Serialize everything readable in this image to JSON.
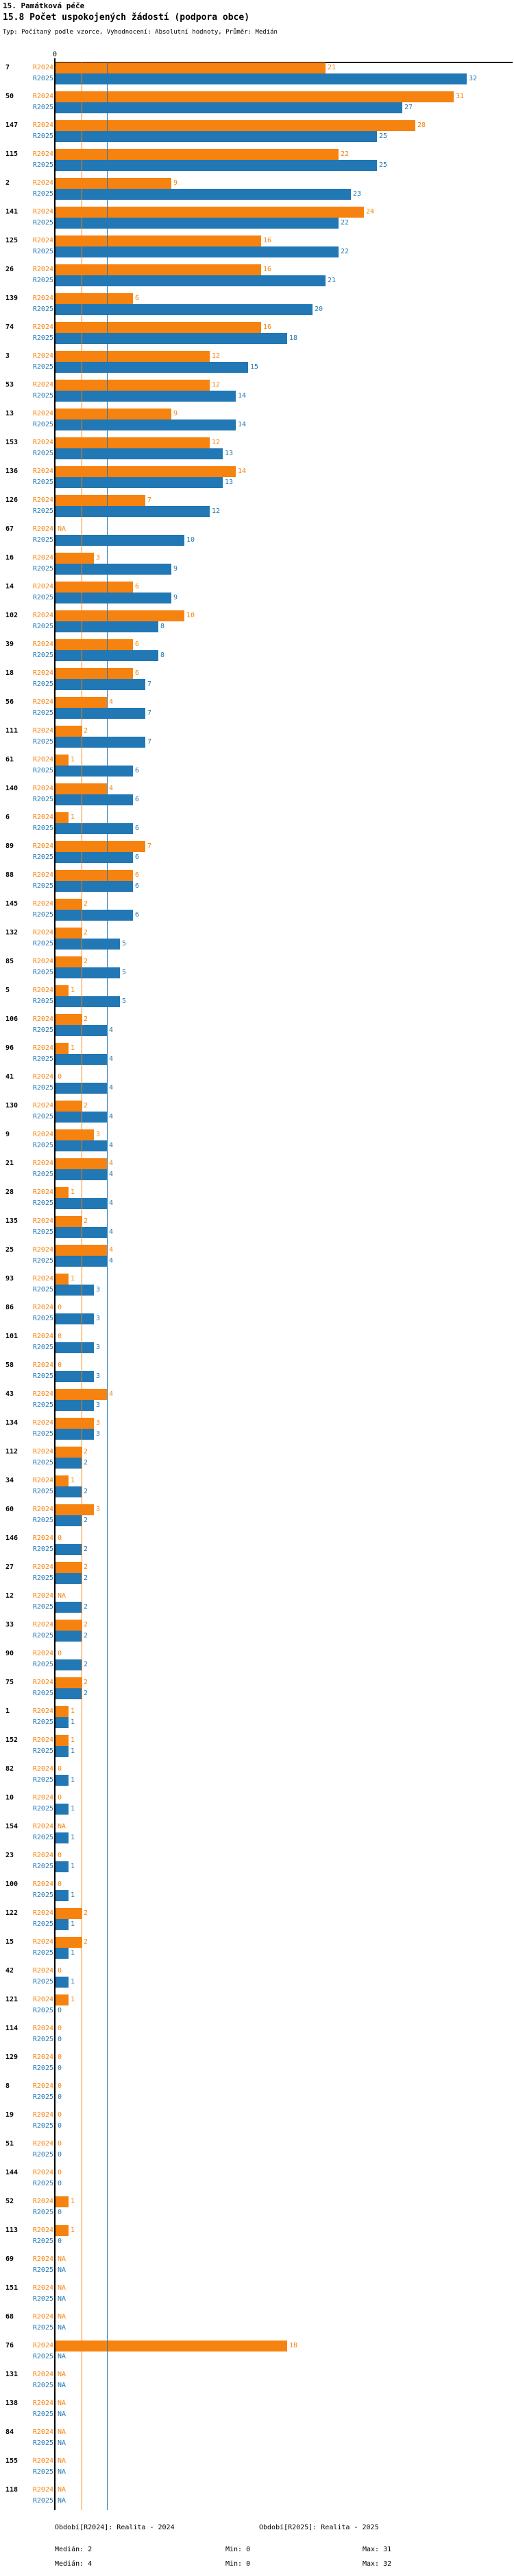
{
  "header": {
    "title": "15. Památková péče",
    "subtitle": "15.8 Počet uspokojených žádostí (podpora obce)",
    "meta": "Typ: Počítaný podle vzorce, Vyhodnocení: Absolutní hodnoty, Průměr: Medián"
  },
  "colors": {
    "r2024": "#F6830F",
    "r2025": "#2277B5",
    "axis": "#000000"
  },
  "axis": {
    "zero_label": "0"
  },
  "chart_data": {
    "type": "bar",
    "orientation": "horizontal",
    "xlim": [
      0,
      32
    ],
    "grid": true,
    "series_labels": [
      "R2024",
      "R2025"
    ],
    "na_label": "NA",
    "gridlines": [
      {
        "name": "median-r2024",
        "value": 2,
        "color": "#F6830F"
      },
      {
        "name": "median-r2025",
        "value": 4,
        "color": "#2277B5"
      }
    ],
    "rows": [
      {
        "label": "7",
        "r2024": 21,
        "r2025": 32
      },
      {
        "label": "50",
        "r2024": 31,
        "r2025": 27
      },
      {
        "label": "147",
        "r2024": 28,
        "r2025": 25
      },
      {
        "label": "115",
        "r2024": 22,
        "r2025": 25
      },
      {
        "label": "2",
        "r2024": 9,
        "r2025": 23
      },
      {
        "label": "141",
        "r2024": 24,
        "r2025": 22
      },
      {
        "label": "125",
        "r2024": 16,
        "r2025": 22
      },
      {
        "label": "26",
        "r2024": 16,
        "r2025": 21
      },
      {
        "label": "139",
        "r2024": 6,
        "r2025": 20
      },
      {
        "label": "74",
        "r2024": 16,
        "r2025": 18
      },
      {
        "label": "3",
        "r2024": 12,
        "r2025": 15
      },
      {
        "label": "53",
        "r2024": 12,
        "r2025": 14
      },
      {
        "label": "13",
        "r2024": 9,
        "r2025": 14
      },
      {
        "label": "153",
        "r2024": 12,
        "r2025": 13
      },
      {
        "label": "136",
        "r2024": 14,
        "r2025": 13
      },
      {
        "label": "126",
        "r2024": 7,
        "r2025": 12
      },
      {
        "label": "67",
        "r2024": null,
        "r2025": 10
      },
      {
        "label": "16",
        "r2024": 3,
        "r2025": 9
      },
      {
        "label": "14",
        "r2024": 6,
        "r2025": 9
      },
      {
        "label": "102",
        "r2024": 10,
        "r2025": 8
      },
      {
        "label": "39",
        "r2024": 6,
        "r2025": 8
      },
      {
        "label": "18",
        "r2024": 6,
        "r2025": 7
      },
      {
        "label": "56",
        "r2024": 4,
        "r2025": 7
      },
      {
        "label": "111",
        "r2024": 2,
        "r2025": 7
      },
      {
        "label": "61",
        "r2024": 1,
        "r2025": 6
      },
      {
        "label": "140",
        "r2024": 4,
        "r2025": 6
      },
      {
        "label": "6",
        "r2024": 1,
        "r2025": 6
      },
      {
        "label": "89",
        "r2024": 7,
        "r2025": 6
      },
      {
        "label": "88",
        "r2024": 6,
        "r2025": 6
      },
      {
        "label": "145",
        "r2024": 2,
        "r2025": 6
      },
      {
        "label": "132",
        "r2024": 2,
        "r2025": 5
      },
      {
        "label": "85",
        "r2024": 2,
        "r2025": 5
      },
      {
        "label": "5",
        "r2024": 1,
        "r2025": 5
      },
      {
        "label": "106",
        "r2024": 2,
        "r2025": 4
      },
      {
        "label": "96",
        "r2024": 1,
        "r2025": 4
      },
      {
        "label": "41",
        "r2024": 0,
        "r2025": 4
      },
      {
        "label": "130",
        "r2024": 2,
        "r2025": 4
      },
      {
        "label": "9",
        "r2024": 3,
        "r2025": 4
      },
      {
        "label": "21",
        "r2024": 4,
        "r2025": 4
      },
      {
        "label": "28",
        "r2024": 1,
        "r2025": 4
      },
      {
        "label": "135",
        "r2024": 2,
        "r2025": 4
      },
      {
        "label": "25",
        "r2024": 4,
        "r2025": 4
      },
      {
        "label": "93",
        "r2024": 1,
        "r2025": 3
      },
      {
        "label": "86",
        "r2024": 0,
        "r2025": 3
      },
      {
        "label": "101",
        "r2024": 0,
        "r2025": 3
      },
      {
        "label": "58",
        "r2024": 0,
        "r2025": 3
      },
      {
        "label": "43",
        "r2024": 4,
        "r2025": 3
      },
      {
        "label": "134",
        "r2024": 3,
        "r2025": 3
      },
      {
        "label": "112",
        "r2024": 2,
        "r2025": 2
      },
      {
        "label": "34",
        "r2024": 1,
        "r2025": 2
      },
      {
        "label": "60",
        "r2024": 3,
        "r2025": 2
      },
      {
        "label": "146",
        "r2024": 0,
        "r2025": 2
      },
      {
        "label": "27",
        "r2024": 2,
        "r2025": 2
      },
      {
        "label": "12",
        "r2024": null,
        "r2025": 2
      },
      {
        "label": "33",
        "r2024": 2,
        "r2025": 2
      },
      {
        "label": "90",
        "r2024": 0,
        "r2025": 2
      },
      {
        "label": "75",
        "r2024": 2,
        "r2025": 2
      },
      {
        "label": "1",
        "r2024": 1,
        "r2025": 1
      },
      {
        "label": "152",
        "r2024": 1,
        "r2025": 1
      },
      {
        "label": "82",
        "r2024": 0,
        "r2025": 1
      },
      {
        "label": "10",
        "r2024": 0,
        "r2025": 1
      },
      {
        "label": "154",
        "r2024": null,
        "r2025": 1
      },
      {
        "label": "23",
        "r2024": 0,
        "r2025": 1
      },
      {
        "label": "100",
        "r2024": 0,
        "r2025": 1
      },
      {
        "label": "122",
        "r2024": 2,
        "r2025": 1
      },
      {
        "label": "15",
        "r2024": 2,
        "r2025": 1
      },
      {
        "label": "42",
        "r2024": 0,
        "r2025": 1
      },
      {
        "label": "121",
        "r2024": 1,
        "r2025": 0
      },
      {
        "label": "114",
        "r2024": 0,
        "r2025": 0
      },
      {
        "label": "129",
        "r2024": 0,
        "r2025": 0
      },
      {
        "label": "8",
        "r2024": 0,
        "r2025": 0
      },
      {
        "label": "19",
        "r2024": 0,
        "r2025": 0
      },
      {
        "label": "51",
        "r2024": 0,
        "r2025": 0
      },
      {
        "label": "144",
        "r2024": 0,
        "r2025": 0
      },
      {
        "label": "52",
        "r2024": 1,
        "r2025": 0
      },
      {
        "label": "113",
        "r2024": 1,
        "r2025": 0
      },
      {
        "label": "69",
        "r2024": null,
        "r2025": null
      },
      {
        "label": "151",
        "r2024": null,
        "r2025": null
      },
      {
        "label": "68",
        "r2024": null,
        "r2025": null
      },
      {
        "label": "76",
        "r2024": 18,
        "r2025": null
      },
      {
        "label": "131",
        "r2024": null,
        "r2025": null
      },
      {
        "label": "138",
        "r2024": null,
        "r2025": null
      },
      {
        "label": "84",
        "r2024": null,
        "r2025": null
      },
      {
        "label": "155",
        "r2024": null,
        "r2025": null
      },
      {
        "label": "118",
        "r2024": null,
        "r2025": null
      }
    ]
  },
  "footer": {
    "period_2024": "Období[R2024]: Realita - 2024",
    "period_2025": "Období[R2025]: Realita - 2025",
    "stats_2024": {
      "median": "Medián: 2",
      "min": "Min: 0",
      "max": "Max: 31"
    },
    "stats_2025": {
      "median": "Medián: 4",
      "min": "Min: 0",
      "max": "Max: 32"
    }
  }
}
